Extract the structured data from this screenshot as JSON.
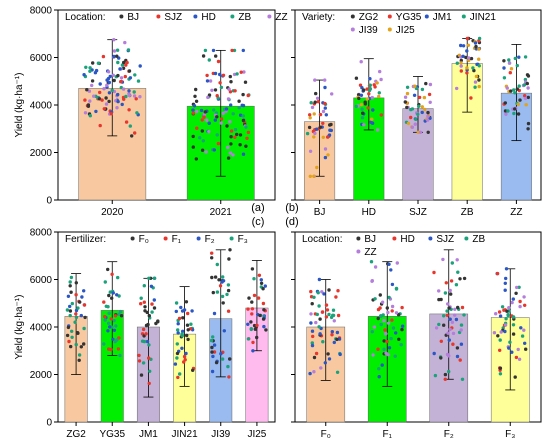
{
  "panel_tags": [
    "(a)",
    "(b)",
    "(c)",
    "(d)"
  ],
  "chart_data": [
    {
      "id": "a",
      "type": "bar",
      "ylabel": "Yield (kg·ha⁻¹)",
      "ylim": [
        0,
        8000
      ],
      "yticks": [
        0,
        2000,
        4000,
        6000,
        8000
      ],
      "categories": [
        "2020",
        "2021"
      ],
      "values": [
        4700,
        3950
      ],
      "max": [
        6750,
        6300
      ],
      "min": [
        2700,
        1000
      ],
      "bar_colors": [
        "#f8c9a0",
        "#00ee00"
      ],
      "legend_title": "Location:",
      "legend": [
        {
          "name": "BJ",
          "color": "#333333"
        },
        {
          "name": "SJZ",
          "color": "#e8362d"
        },
        {
          "name": "HD",
          "color": "#2a56c6"
        },
        {
          "name": "ZB",
          "color": "#1aa37a"
        },
        {
          "name": "ZZ",
          "color": "#b57edc"
        }
      ]
    },
    {
      "id": "b",
      "type": "bar",
      "ylabel": "",
      "ylim": [
        0,
        8000
      ],
      "yticks": [
        0,
        2000,
        4000,
        6000,
        8000
      ],
      "categories": [
        "BJ",
        "HD",
        "SJZ",
        "ZB",
        "ZZ"
      ],
      "values": [
        3300,
        4300,
        3850,
        5750,
        4500
      ],
      "max": [
        5050,
        5950,
        5200,
        6800,
        6550
      ],
      "min": [
        1000,
        2950,
        2850,
        3700,
        2500
      ],
      "bar_colors": [
        "#f8c9a0",
        "#00ee00",
        "#c3b2d6",
        "#ffff99",
        "#99bbf0"
      ],
      "legend_title": "Variety:",
      "legend": [
        {
          "name": "ZG2",
          "color": "#333333"
        },
        {
          "name": "YG35",
          "color": "#e8362d"
        },
        {
          "name": "JM1",
          "color": "#2a56c6"
        },
        {
          "name": "JIN21",
          "color": "#1aa37a"
        },
        {
          "name": "JI39",
          "color": "#b57edc"
        },
        {
          "name": "JI25",
          "color": "#e3a21a"
        }
      ]
    },
    {
      "id": "c",
      "type": "bar",
      "ylabel": "Yield (kg·ha⁻¹)",
      "ylim": [
        0,
        8000
      ],
      "yticks": [
        0,
        2000,
        4000,
        6000,
        8000
      ],
      "categories": [
        "ZG2",
        "YG35",
        "JM1",
        "JIN21",
        "JI39",
        "JI25"
      ],
      "values": [
        4450,
        4700,
        4000,
        3700,
        4350,
        4800
      ],
      "max": [
        6250,
        6750,
        6050,
        5700,
        7250,
        6800
      ],
      "min": [
        2000,
        2800,
        1050,
        1500,
        1900,
        3000
      ],
      "bar_colors": [
        "#f8c9a0",
        "#00ee00",
        "#c3b2d6",
        "#ffff99",
        "#99bbf0",
        "#ffbbee"
      ],
      "legend_title": "Fertilizer:",
      "legend": [
        {
          "name": "F₀",
          "color": "#333333"
        },
        {
          "name": "F₁",
          "color": "#e8362d"
        },
        {
          "name": "F₂",
          "color": "#2a56c6"
        },
        {
          "name": "F₃",
          "color": "#1aa37a"
        }
      ]
    },
    {
      "id": "d",
      "type": "bar",
      "ylabel": "",
      "ylim": [
        0,
        8000
      ],
      "yticks": [
        0,
        2000,
        4000,
        6000,
        8000
      ],
      "categories": [
        "F₀",
        "F₁",
        "F₂",
        "F₃"
      ],
      "values": [
        4000,
        4450,
        4550,
        4400
      ],
      "max": [
        6000,
        6750,
        7250,
        6450
      ],
      "min": [
        1750,
        1500,
        1800,
        1350
      ],
      "bar_colors": [
        "#f8c9a0",
        "#00ee00",
        "#c3b2d6",
        "#ffff99"
      ],
      "legend_title": "Location:",
      "legend": [
        {
          "name": "BJ",
          "color": "#333333"
        },
        {
          "name": "HD",
          "color": "#e8362d"
        },
        {
          "name": "SJZ",
          "color": "#2a56c6"
        },
        {
          "name": "ZB",
          "color": "#1aa37a"
        },
        {
          "name": "ZZ",
          "color": "#b57edc"
        }
      ]
    }
  ]
}
